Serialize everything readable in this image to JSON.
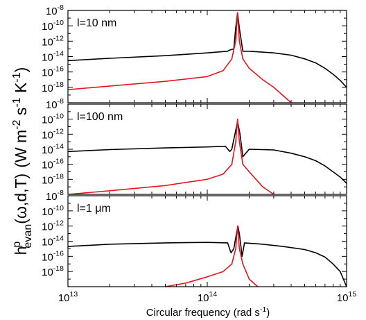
{
  "chart_data": {
    "type": "line",
    "xlabel": "Circular frequency (rad s",
    "xlabel_sup": "-1",
    "xlabel_end": ")",
    "xscale": "log",
    "xlim": [
      10000000000000.0,
      1000000000000000.0
    ],
    "x_ticks": [
      {
        "value": 10000000000000.0,
        "base": "10",
        "exp": "13"
      },
      {
        "value": 100000000000000.0,
        "base": "10",
        "exp": "14"
      },
      {
        "value": 1000000000000000.0,
        "base": "10",
        "exp": "15"
      }
    ],
    "ylabel": {
      "h": "h",
      "sup": "p",
      "sub": "evan",
      "args": "(ω,d,T)",
      "unit_a": "(W m",
      "unit_a_sup": "-2",
      "unit_b": " s",
      "unit_b_sup": "-1",
      "unit_c": " K",
      "unit_c_sup": "-1",
      "unit_end": ")"
    },
    "yscale": "log",
    "ylim": [
      1e-20,
      1e-08
    ],
    "y_ticks": [
      {
        "value": 1e-08,
        "base": "10",
        "exp": "-8"
      },
      {
        "value": 1e-10,
        "base": "10",
        "exp": "-10"
      },
      {
        "value": 1e-12,
        "base": "10",
        "exp": "-12"
      },
      {
        "value": 1e-14,
        "base": "10",
        "exp": "-14"
      },
      {
        "value": 1e-16,
        "base": "10",
        "exp": "-16"
      },
      {
        "value": 1e-18,
        "base": "10",
        "exp": "-18"
      }
    ],
    "grid": false,
    "colors": {
      "black_series": "#000000",
      "red_series": "#e8141e"
    },
    "panels": [
      {
        "label": "l=10 nm",
        "series": [
          {
            "color": "black",
            "x": [
              10000000000000.0,
              20000000000000.0,
              50000000000000.0,
              100000000000000.0,
              140000000000000.0,
              145000000000000.0,
              155000000000000.0,
              160000000000000.0,
              165000000000000.0,
              170000000000000.0,
              180000000000000.0,
              200000000000000.0,
              300000000000000.0,
              400000000000000.0,
              500000000000000.0,
              600000000000000.0,
              700000000000000.0,
              800000000000000.0,
              900000000000000.0,
              1000000000000000.0
            ],
            "y": [
              3e-15,
              6e-15,
              1.3e-14,
              3e-14,
              5e-14,
              7e-14,
              1e-13,
              5e-11,
              5e-09,
              5e-11,
              5e-14,
              5e-14,
              3e-14,
              1.5e-14,
              5e-15,
              1.5e-15,
              3e-16,
              5e-17,
              8e-18,
              1e-18
            ]
          },
          {
            "color": "red",
            "x": [
              10000000000000.0,
              20000000000000.0,
              50000000000000.0,
              100000000000000.0,
              130000000000000.0,
              150000000000000.0,
              160000000000000.0,
              165000000000000.0,
              170000000000000.0,
              180000000000000.0,
              200000000000000.0,
              250000000000000.0,
              300000000000000.0,
              400000000000000.0
            ],
            "y": [
              5e-19,
              1.5e-18,
              6e-18,
              2.5e-17,
              1.5e-16,
              5e-15,
              1e-12,
              5e-09,
              1e-12,
              5e-15,
              3e-16,
              1e-17,
              1e-18,
              1e-20
            ]
          }
        ]
      },
      {
        "label": "l=100 nm",
        "series": [
          {
            "color": "black",
            "x": [
              10000000000000.0,
              20000000000000.0,
              50000000000000.0,
              100000000000000.0,
              135000000000000.0,
              145000000000000.0,
              150000000000000.0,
              158000000000000.0,
              165000000000000.0,
              172000000000000.0,
              180000000000000.0,
              200000000000000.0,
              300000000000000.0,
              400000000000000.0,
              500000000000000.0,
              600000000000000.0,
              700000000000000.0,
              800000000000000.0,
              900000000000000.0,
              1000000000000000.0
            ],
            "y": [
              5e-15,
              9e-15,
              1.5e-14,
              2e-14,
              2.5e-14,
              5e-15,
              1e-14,
              1e-12,
              5e-11,
              1e-12,
              1e-15,
              1e-14,
              8e-15,
              3e-15,
              1e-15,
              3e-16,
              6e-17,
              1e-17,
              2e-18,
              3e-19
            ]
          },
          {
            "color": "red",
            "x": [
              10000000000000.0,
              20000000000000.0,
              50000000000000.0,
              100000000000000.0,
              130000000000000.0,
              150000000000000.0,
              160000000000000.0,
              165000000000000.0,
              170000000000000.0,
              180000000000000.0,
              200000000000000.0,
              250000000000000.0,
              300000000000000.0
            ],
            "y": [
              1e-20,
              3e-20,
              1.5e-19,
              1e-18,
              5e-18,
              1e-16,
              1e-13,
              1e-10,
              1e-13,
              1e-16,
              1e-17,
              1e-19,
              1e-20
            ]
          }
        ]
      },
      {
        "label": "l=1 μm",
        "series": [
          {
            "color": "black",
            "x": [
              10000000000000.0,
              20000000000000.0,
              50000000000000.0,
              100000000000000.0,
              140000000000000.0,
              148000000000000.0,
              155000000000000.0,
              162000000000000.0,
              166000000000000.0,
              170000000000000.0,
              178000000000000.0,
              185000000000000.0,
              250000000000000.0,
              350000000000000.0,
              500000000000000.0,
              600000000000000.0,
              700000000000000.0,
              800000000000000.0,
              900000000000000.0,
              1000000000000000.0
            ],
            "y": [
              2e-15,
              4e-15,
              6e-15,
              7e-15,
              6e-15,
              3e-16,
              1e-15,
              1e-13,
              1e-12,
              1e-13,
              1e-16,
              6e-15,
              4e-15,
              2e-15,
              8e-16,
              3e-16,
              8e-17,
              1e-17,
              1e-18,
              1e-20
            ]
          },
          {
            "color": "red",
            "x": [
              50000000000000.0,
              70000000000000.0,
              100000000000000.0,
              130000000000000.0,
              150000000000000.0,
              160000000000000.0,
              165000000000000.0,
              170000000000000.0,
              180000000000000.0,
              200000000000000.0,
              230000000000000.0
            ],
            "y": [
              1e-20,
              3e-20,
              2e-19,
              1e-18,
              1e-17,
              1e-15,
              1e-12,
              1e-15,
              1e-17,
              1e-19,
              1e-20
            ]
          }
        ]
      }
    ]
  }
}
